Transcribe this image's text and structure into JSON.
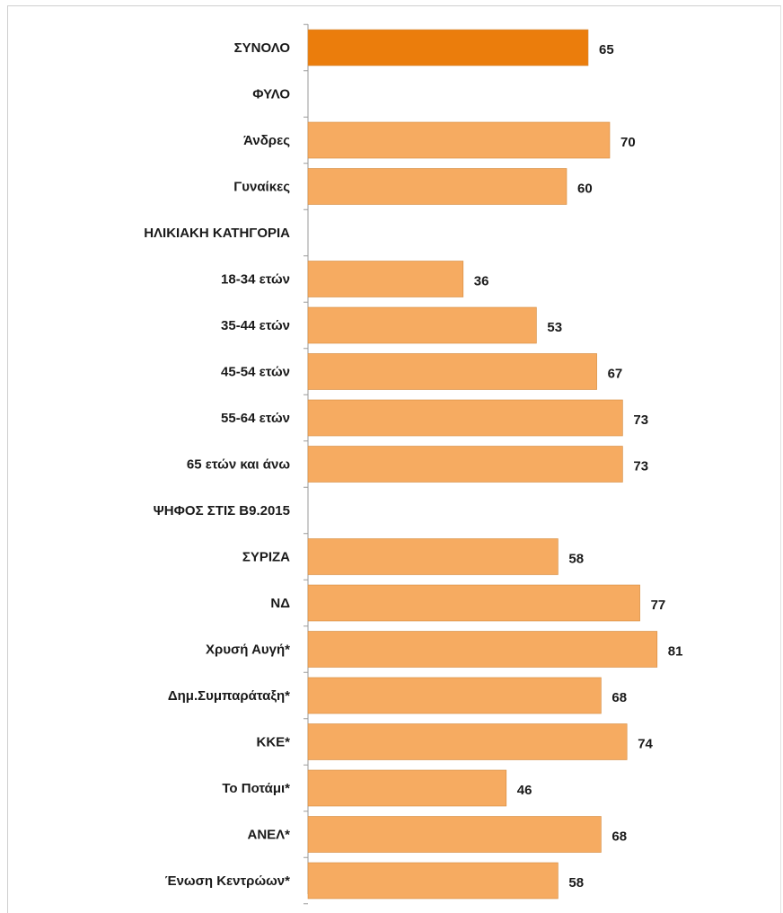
{
  "chart_data": {
    "type": "bar",
    "orientation": "horizontal",
    "categories": [
      "ΣΥΝΟΛΟ",
      "ΦΥΛΟ",
      "Άνδρες",
      "Γυναίκες",
      "ΗΛΙΚΙΑΚΗ ΚΑΤΗΓΟΡΙΑ",
      "18-34 ετών",
      "35-44 ετών",
      "45-54 ετών",
      "55-64 ετών",
      "65 ετών και άνω",
      "ΨΗΦΟΣ ΣΤΙΣ Β9.2015",
      "ΣΥΡΙΖΑ",
      "ΝΔ",
      "Χρυσή Αυγή*",
      "Δημ.Συμπαράταξη*",
      "ΚΚΕ*",
      "Το Ποτάμι*",
      "ΑΝΕΛ*",
      "Ένωση Κεντρώων*"
    ],
    "values": [
      65,
      null,
      70,
      60,
      null,
      36,
      53,
      67,
      73,
      73,
      null,
      58,
      77,
      81,
      68,
      74,
      46,
      68,
      58
    ],
    "value_labels": [
      "65",
      "",
      "70",
      "60",
      "",
      "36",
      "53",
      "67",
      "73",
      "73",
      "",
      "58",
      "77",
      "81",
      "68",
      "74",
      "46",
      "68",
      "58"
    ],
    "title": "",
    "xlabel": "",
    "ylabel": "",
    "xlim": [
      0,
      100
    ],
    "grid": false,
    "legend": "none",
    "highlight_category": "ΣΥΝΟΛΟ",
    "colors": {
      "highlight": "#EB7D0C",
      "bar": "#F6AB61",
      "bar_stroke": "#D48A3E",
      "axis": "#9a9a9a",
      "text": "#1a1a1a"
    }
  }
}
